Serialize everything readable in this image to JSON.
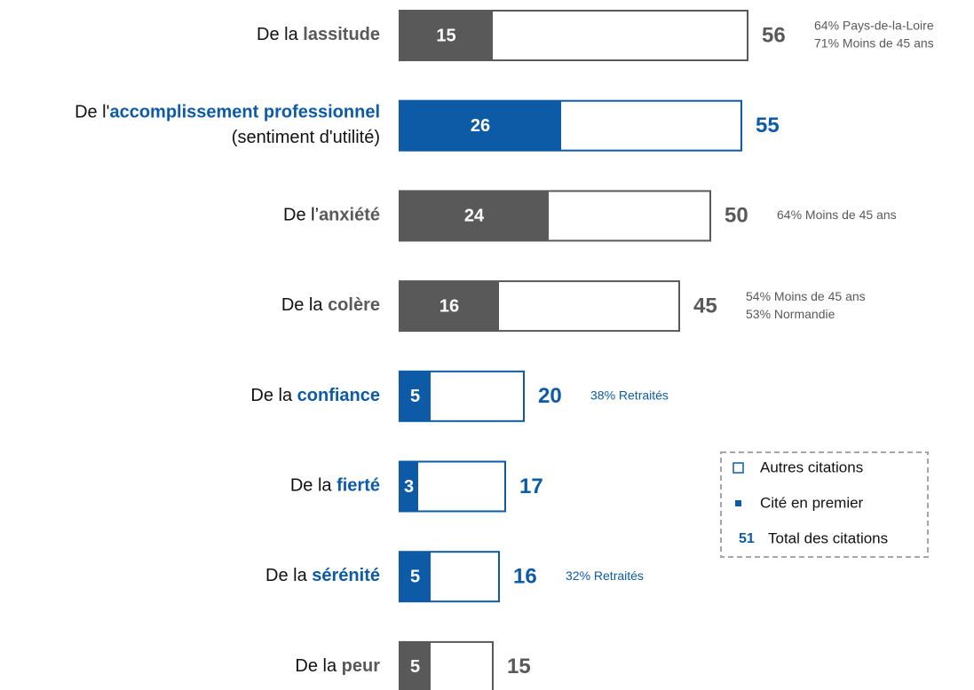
{
  "chart_data": {
    "type": "bar",
    "orientation": "horizontal",
    "categories": [
      {
        "prefix": "De la ",
        "keyword": "lassitude"
      },
      {
        "prefix": "De l'",
        "keyword": "accomplissement professionnel",
        "note": "(sentiment d'utilité)"
      },
      {
        "prefix": "De l’",
        "keyword": "anxiété"
      },
      {
        "prefix": "De la ",
        "keyword": "colère"
      },
      {
        "prefix": "De la ",
        "keyword": "confiance"
      },
      {
        "prefix": "De la ",
        "keyword": "fierté"
      },
      {
        "prefix": "De la ",
        "keyword": "sérénité"
      },
      {
        "prefix": "De la ",
        "keyword": "peur"
      }
    ],
    "category_colors": [
      "#595959",
      "#0d5ba6",
      "#595959",
      "#595959",
      "#0d5ba6",
      "#0d5ba6",
      "#0d5ba6",
      "#595959"
    ],
    "series": [
      {
        "name": "Cité en premier",
        "values": [
          15,
          26,
          24,
          16,
          5,
          3,
          5,
          5
        ]
      },
      {
        "name": "Total des citations",
        "values": [
          56,
          55,
          50,
          45,
          20,
          17,
          16,
          15
        ]
      }
    ],
    "annotations": [
      [
        "64% Pays-de-la-Loire",
        "71% Moins de 45 ans"
      ],
      [],
      [
        "64% Moins de 45 ans"
      ],
      [
        "54% Moins de 45 ans",
        "53% Normandie"
      ],
      [
        "38% Retraités"
      ],
      [],
      [
        "32% Retraités"
      ],
      []
    ],
    "legend": {
      "outline_label": "Autres citations",
      "sample_total": 51,
      "color": "#0d5ba6"
    }
  }
}
